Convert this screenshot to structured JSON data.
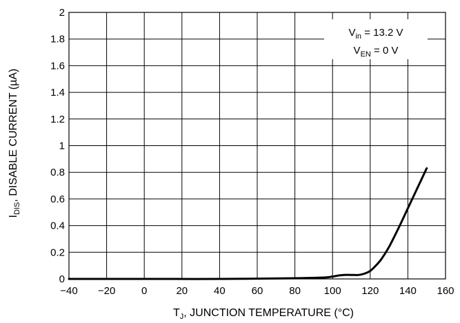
{
  "chart_data": {
    "type": "line",
    "title": "",
    "xlabel": {
      "prefix": "T",
      "sub": "J",
      "text": ", JUNCTION TEMPERATURE (°C)"
    },
    "ylabel": {
      "prefix": "I",
      "sub": "DIS",
      "text": ", DISABLE CURRENT (µA)"
    },
    "xlim": [
      -40,
      160
    ],
    "ylim": [
      0,
      2
    ],
    "x_ticks": [
      -40,
      -20,
      0,
      20,
      40,
      60,
      80,
      100,
      120,
      140,
      160
    ],
    "x_tick_labels": [
      "−40",
      "−20",
      "0",
      "20",
      "40",
      "60",
      "80",
      "100",
      "120",
      "140",
      "160"
    ],
    "y_ticks": [
      0,
      0.2,
      0.4,
      0.6,
      0.8,
      1,
      1.2,
      1.4,
      1.6,
      1.8,
      2
    ],
    "y_tick_labels": [
      "0",
      "0.2",
      "0.4",
      "0.6",
      "0.8",
      "1",
      "1.2",
      "1.4",
      "1.6",
      "1.8",
      "2"
    ],
    "grid": true,
    "annotations": [
      {
        "prefix": "V",
        "sub": "in",
        "text": " = 13.2 V"
      },
      {
        "prefix": "V",
        "sub": "EN",
        "text": " = 0 V"
      }
    ],
    "series": [
      {
        "x": [
          -40,
          0,
          40,
          80,
          95,
          100,
          103,
          106,
          110,
          114,
          117,
          120,
          123,
          126,
          130,
          135,
          140,
          145,
          150
        ],
        "y": [
          0.0,
          0.0,
          0.0,
          0.005,
          0.01,
          0.018,
          0.025,
          0.03,
          0.03,
          0.03,
          0.04,
          0.06,
          0.1,
          0.15,
          0.24,
          0.38,
          0.53,
          0.68,
          0.83
        ]
      }
    ]
  }
}
